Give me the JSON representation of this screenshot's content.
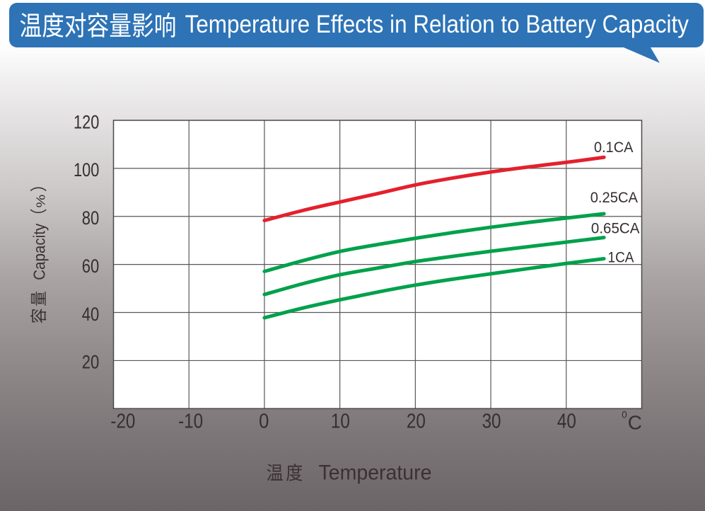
{
  "banner": {
    "title_zh": "温度对容量影响",
    "title_en": "Temperature Effects in Relation to Battery Capacity",
    "title_full": "温度对容量影响 Temperature Effects in Relation to Battery Capacity",
    "bubble_color": "#2d73b6",
    "text_color": "#ffffff"
  },
  "chart_data": {
    "type": "line",
    "title": "温度对容量影响 Temperature Effects in Relation to Battery Capacity",
    "xlabel": "温度  Temperature",
    "xlabel_zh": "温度",
    "xlabel_en": "Temperature",
    "ylabel": "容量 Capacity（%）",
    "ylabel_zh": "容量",
    "ylabel_en": "Capacity",
    "ylabel_unit": "%",
    "ylabel_paren_open": "（",
    "ylabel_paren_close": "）",
    "x_unit_sup": "0",
    "x_unit": "C",
    "xlim": [
      -20,
      50
    ],
    "ylim": [
      0,
      120
    ],
    "x_gridline_step": 10,
    "y_gridline_step": 20,
    "x_tick_labels": [
      "-20",
      "-10",
      "0",
      "10",
      "20",
      "30",
      "40"
    ],
    "x_tick_values": [
      -20,
      -10,
      0,
      10,
      20,
      30,
      40
    ],
    "y_tick_labels": [
      "120",
      "100",
      "80",
      "60",
      "40",
      "20"
    ],
    "y_tick_values": [
      120,
      100,
      80,
      60,
      40,
      20
    ],
    "grid": true,
    "legend_position": "right-inline",
    "x": [
      0,
      5,
      10,
      15,
      20,
      25,
      30,
      35,
      40,
      45
    ],
    "series": [
      {
        "name": "0.1CA",
        "color": "#e4202c",
        "values": [
          78.3,
          82.4,
          86.0,
          89.5,
          93.1,
          96.0,
          98.5,
          100.6,
          102.5,
          104.6
        ]
      },
      {
        "name": "0.25CA",
        "color": "#00a14b",
        "values": [
          57.1,
          61.5,
          65.4,
          68.3,
          70.9,
          73.3,
          75.5,
          77.5,
          79.3,
          81.1
        ]
      },
      {
        "name": "0.65CA",
        "color": "#00a14b",
        "values": [
          47.5,
          51.9,
          55.7,
          58.5,
          61.2,
          63.4,
          65.5,
          67.4,
          69.3,
          71.2
        ]
      },
      {
        "name": "1CA",
        "color": "#00a14b",
        "values": [
          37.8,
          41.8,
          45.3,
          48.5,
          51.4,
          53.9,
          56.1,
          58.3,
          60.4,
          62.4
        ]
      }
    ]
  }
}
